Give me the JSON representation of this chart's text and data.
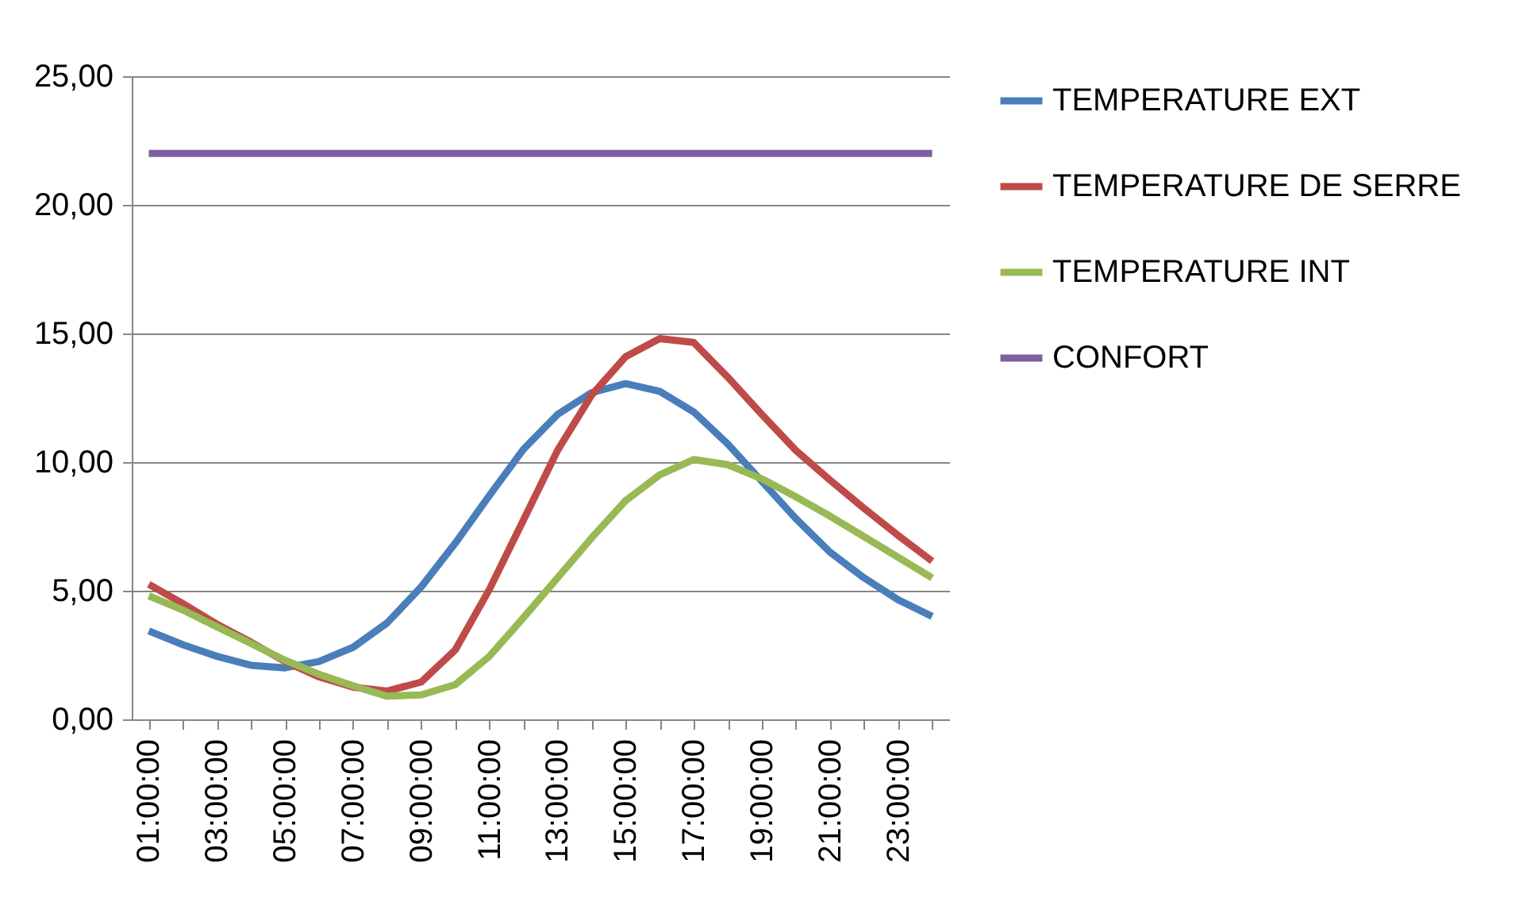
{
  "chart_data": {
    "type": "line",
    "categories": [
      "01:00:00",
      null,
      "03:00:00",
      null,
      "05:00:00",
      null,
      "07:00:00",
      null,
      "09:00:00",
      null,
      "11:00:00",
      null,
      "13:00:00",
      null,
      "15:00:00",
      null,
      "17:00:00",
      null,
      "19:00:00",
      null,
      "21:00:00",
      null,
      "23:00:00",
      null
    ],
    "series": [
      {
        "name": "TEMPERATURE EXT",
        "color": "#4a7ebb",
        "values": [
          3.44,
          2.9,
          2.45,
          2.1,
          2.0,
          2.25,
          2.8,
          3.75,
          5.15,
          6.85,
          8.7,
          10.5,
          11.85,
          12.7,
          13.05,
          12.75,
          11.95,
          10.7,
          9.25,
          7.8,
          6.5,
          5.5,
          4.65,
          4.0
        ]
      },
      {
        "name": "TEMPERATURE DE SERRE",
        "color": "#be4b48",
        "values": [
          5.25,
          4.5,
          3.7,
          3.0,
          2.25,
          1.65,
          1.25,
          1.1,
          1.45,
          2.7,
          5.05,
          7.75,
          10.45,
          12.6,
          14.1,
          14.8,
          14.65,
          13.3,
          11.85,
          10.45,
          9.3,
          8.2,
          7.15,
          6.15
        ]
      },
      {
        "name": "TEMPERATURE INT",
        "color": "#98b954",
        "values": [
          4.8,
          4.25,
          3.6,
          2.95,
          2.3,
          1.75,
          1.3,
          0.9,
          0.95,
          1.35,
          2.45,
          3.95,
          5.5,
          7.05,
          8.5,
          9.5,
          10.1,
          9.9,
          9.35,
          8.65,
          7.9,
          7.1,
          6.3,
          5.5
        ]
      },
      {
        "name": "CONFORT",
        "color": "#7d60a0",
        "values": [
          22,
          22,
          22,
          22,
          22,
          22,
          22,
          22,
          22,
          22,
          22,
          22,
          22,
          22,
          22,
          22,
          22,
          22,
          22,
          22,
          22,
          22,
          22,
          22
        ]
      }
    ],
    "ylim": [
      0,
      25
    ],
    "yticks": [
      {
        "value": 0,
        "label": "0,00"
      },
      {
        "value": 5,
        "label": "5,00"
      },
      {
        "value": 10,
        "label": "10,00"
      },
      {
        "value": 15,
        "label": "15,00"
      },
      {
        "value": 20,
        "label": "20,00"
      },
      {
        "value": 25,
        "label": "25,00"
      }
    ],
    "grid": "y",
    "legend": "right",
    "marker": "none",
    "line_style": "solid"
  }
}
